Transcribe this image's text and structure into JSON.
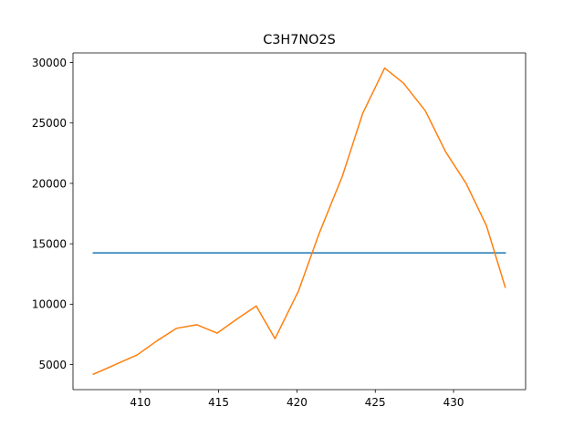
{
  "chart_data": {
    "type": "line",
    "title": "C3H7NO2S",
    "xlabel": "",
    "ylabel": "",
    "xlim": [
      405.7,
      434.6
    ],
    "ylim": [
      2925,
      30800
    ],
    "xticks": [
      410,
      415,
      420,
      425,
      430
    ],
    "yticks": [
      5000,
      10000,
      15000,
      20000,
      25000,
      30000
    ],
    "grid": false,
    "series": [
      {
        "color": "#1f77b4",
        "x": [
          407.0,
          433.3
        ],
        "y": [
          14250,
          14250
        ]
      },
      {
        "color": "#ff7f0e",
        "x": [
          407.0,
          408.4,
          409.8,
          411.1,
          412.3,
          413.6,
          414.9,
          416.2,
          417.4,
          418.6,
          420.1,
          421.4,
          422.9,
          424.2,
          425.6,
          426.8,
          428.2,
          429.5,
          430.8,
          432.1,
          433.3
        ],
        "y": [
          4200,
          5000,
          5800,
          7000,
          8000,
          8300,
          7600,
          8800,
          9850,
          7150,
          11100,
          15800,
          20600,
          25800,
          29550,
          28300,
          26000,
          22600,
          20000,
          16500,
          11400
        ]
      }
    ]
  }
}
